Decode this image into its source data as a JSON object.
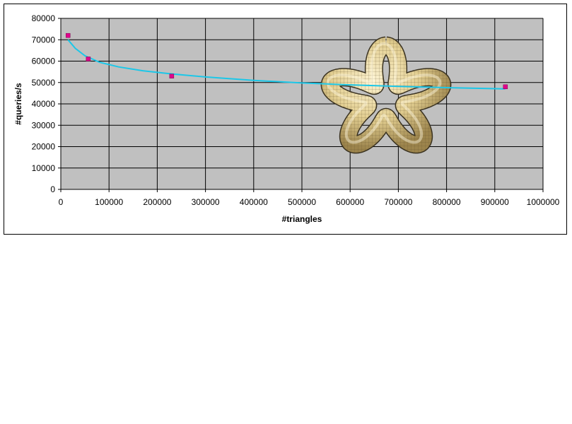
{
  "chart_data": {
    "type": "scatter",
    "title": "",
    "xlabel": "#triangles",
    "ylabel": "#queries/s",
    "xlim": [
      0,
      1000000
    ],
    "ylim": [
      0,
      80000
    ],
    "x_ticks": [
      0,
      100000,
      200000,
      300000,
      400000,
      500000,
      600000,
      700000,
      800000,
      900000,
      1000000
    ],
    "y_ticks": [
      0,
      10000,
      20000,
      30000,
      40000,
      50000,
      60000,
      70000,
      80000
    ],
    "grid": true,
    "legend": "none",
    "series": [
      {
        "type": "scatter",
        "color": "#e0008c",
        "points": [
          [
            15000,
            72000
          ],
          [
            57000,
            61000
          ],
          [
            230000,
            53000
          ],
          [
            922000,
            48000
          ]
        ]
      },
      {
        "type": "line",
        "color": "#1cc7e8",
        "points": [
          [
            15000,
            70000
          ],
          [
            30000,
            66000
          ],
          [
            50000,
            62500
          ],
          [
            80000,
            59500
          ],
          [
            120000,
            57300
          ],
          [
            170000,
            55500
          ],
          [
            230000,
            54000
          ],
          [
            300000,
            52600
          ],
          [
            400000,
            51000
          ],
          [
            500000,
            49800
          ],
          [
            600000,
            48900
          ],
          [
            700000,
            48200
          ],
          [
            800000,
            47600
          ],
          [
            922000,
            47000
          ]
        ]
      }
    ],
    "plot_background": "#c0c0c0",
    "gridline_color": "#000000",
    "inset_image": "knotted-torus-mesh-icon"
  }
}
